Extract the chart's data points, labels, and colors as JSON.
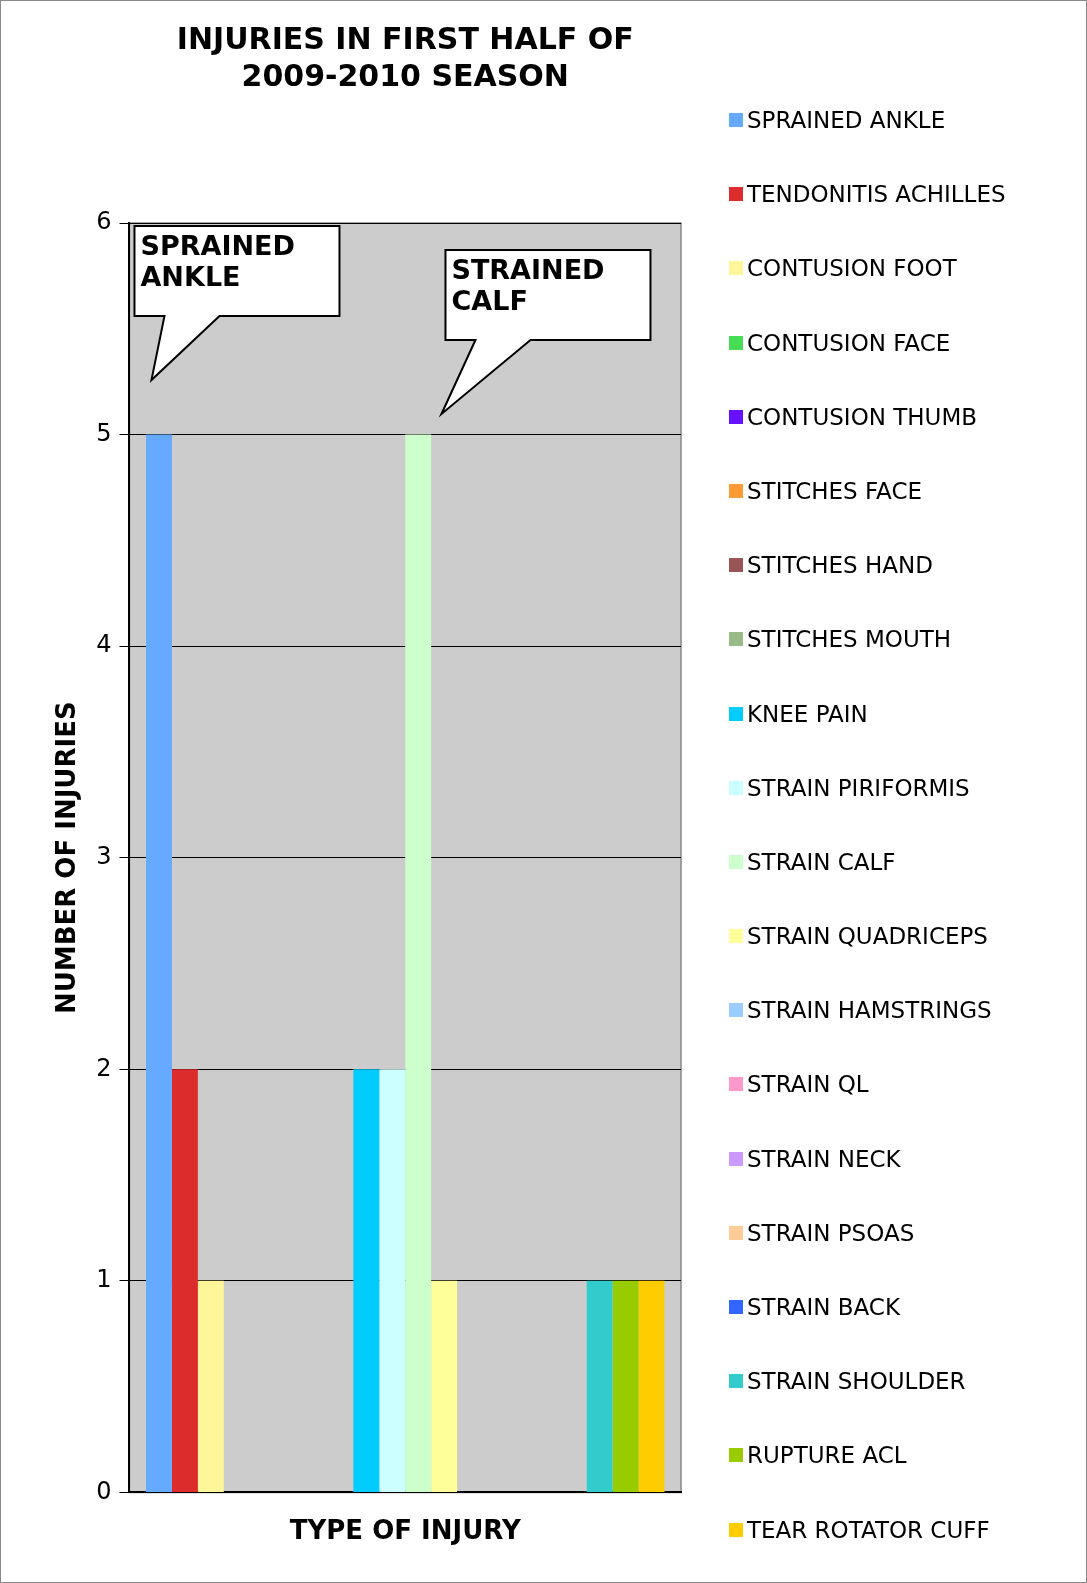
{
  "chart_data": {
    "type": "bar",
    "title": "INJURIES IN FIRST HALF OF\n2009-2010 SEASON",
    "xlabel": "TYPE OF INJURY",
    "ylabel": "NUMBER OF INJURIES",
    "categories": [
      null
    ],
    "series": [
      {
        "name": "SPRAINED ANKLE",
        "color": "#66aaff",
        "values": [
          5
        ]
      },
      {
        "name": "TENDONITIS ACHILLES",
        "color": "#dd2c2c",
        "values": [
          2
        ]
      },
      {
        "name": "CONTUSION FOOT",
        "color": "#fff599",
        "values": [
          1
        ]
      },
      {
        "name": "CONTUSION FACE",
        "color": "#44dd55",
        "values": [
          0
        ]
      },
      {
        "name": "CONTUSION THUMB",
        "color": "#6611ff",
        "values": [
          0
        ]
      },
      {
        "name": "STITCHES FACE",
        "color": "#ff9933",
        "values": [
          0
        ]
      },
      {
        "name": "STITCHES HAND",
        "color": "#995555",
        "values": [
          0
        ]
      },
      {
        "name": "STITCHES MOUTH",
        "color": "#99bb88",
        "values": [
          0
        ]
      },
      {
        "name": "KNEE PAIN",
        "color": "#00ccff",
        "values": [
          2
        ]
      },
      {
        "name": "STRAIN PIRIFORMIS",
        "color": "#ccffff",
        "values": [
          2
        ]
      },
      {
        "name": "STRAIN CALF",
        "color": "#ccffcc",
        "values": [
          5
        ]
      },
      {
        "name": "STRAIN QUADRICEPS",
        "color": "#ffff99",
        "values": [
          1
        ]
      },
      {
        "name": "STRAIN HAMSTRINGS",
        "color": "#99ccff",
        "values": [
          0
        ]
      },
      {
        "name": "STRAIN QL",
        "color": "#ff99cc",
        "values": [
          0
        ]
      },
      {
        "name": "STRAIN NECK",
        "color": "#cc99ff",
        "values": [
          0
        ]
      },
      {
        "name": "STRAIN PSOAS",
        "color": "#ffcc99",
        "values": [
          0
        ]
      },
      {
        "name": "STRAIN BACK",
        "color": "#3366ff",
        "values": [
          0
        ]
      },
      {
        "name": "STRAIN SHOULDER",
        "color": "#33cccc",
        "values": [
          1
        ]
      },
      {
        "name": "RUPTURE ACL",
        "color": "#99cc00",
        "values": [
          1
        ]
      },
      {
        "name": "TEAR ROTATOR CUFF",
        "color": "#ffcc00",
        "values": [
          1
        ]
      }
    ],
    "ylim": [
      0,
      6
    ],
    "yticks": [
      0,
      1,
      2,
      3,
      4,
      5,
      6
    ],
    "grid": "y",
    "legend": "right",
    "annotations": [
      "SPRAINED\nANKLE",
      "STRAINED\nCALF"
    ]
  }
}
